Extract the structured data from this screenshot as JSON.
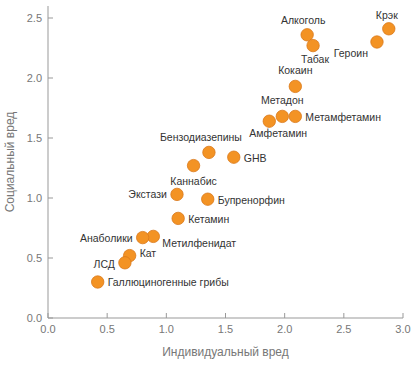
{
  "chart_data": {
    "type": "scatter",
    "x_label": "Индивидуальный вред",
    "y_label": "Социальный вред",
    "point_labels": [
      "Алкоголь",
      "Табак",
      "Героин",
      "Крэк",
      "Кокаин",
      "Метадон",
      "Метамфетамин",
      "Амфетамин",
      "Бензодиазепины",
      "GHB",
      "Каннабис",
      "Экстази",
      "Бупренорфин",
      "Кетамин",
      "Метилфенидат",
      "Анаболики",
      "Кат",
      "ЛСД",
      "Галлюциногенные грибы"
    ],
    "x": [
      2.19,
      2.24,
      2.78,
      2.88,
      2.09,
      1.98,
      2.09,
      1.87,
      1.36,
      1.57,
      1.23,
      1.09,
      1.35,
      1.1,
      0.89,
      0.8,
      0.69,
      0.65,
      0.42
    ],
    "values": [
      2.36,
      2.27,
      2.3,
      2.41,
      1.93,
      1.68,
      1.68,
      1.64,
      1.38,
      1.34,
      1.27,
      1.03,
      0.99,
      0.83,
      0.68,
      0.67,
      0.52,
      0.46,
      0.3
    ],
    "color": "#f39324",
    "marker": "circle",
    "xlim": [
      0,
      3
    ],
    "ylim": [
      0,
      2.6
    ],
    "xticks": [
      {
        "value": 0,
        "label": "0.0"
      },
      0.5,
      {
        "value": 1,
        "label": "1.0"
      },
      1.5,
      {
        "value": 2,
        "label": "2.0"
      },
      2.5,
      {
        "value": 3,
        "label": "3.0"
      }
    ],
    "yticks": [
      {
        "value": 0,
        "label": "0.0"
      },
      0.5,
      {
        "value": 1,
        "label": "1.0"
      },
      1.5,
      {
        "value": 2,
        "label": "2.0"
      },
      2.5
    ],
    "grid": false
  }
}
